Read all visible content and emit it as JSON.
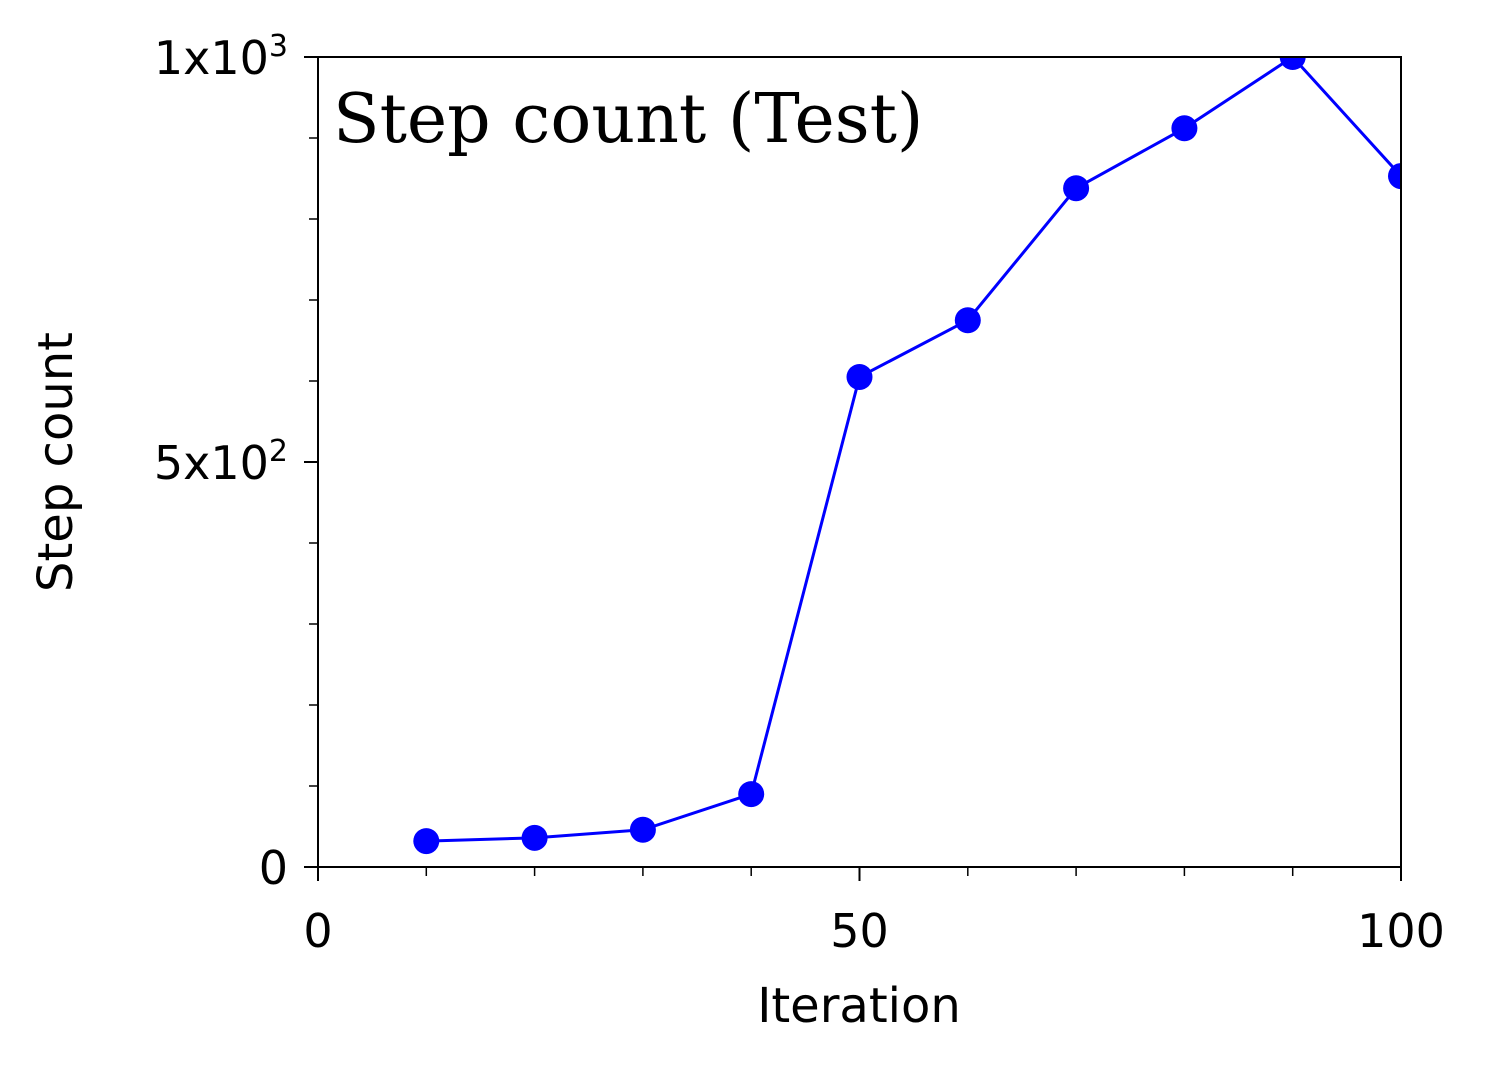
{
  "chart_data": {
    "type": "line",
    "title": "Step count (Test)",
    "xlabel": "Iteration",
    "ylabel": "Step count",
    "xlim": [
      0,
      100
    ],
    "ylim": [
      0,
      1000
    ],
    "x_ticks": [
      {
        "value": 0,
        "label": "0"
      },
      {
        "value": 50,
        "label": "50"
      },
      {
        "value": 100,
        "label": "100"
      }
    ],
    "x_minor_ticks": [
      10,
      20,
      30,
      40,
      60,
      70,
      80,
      90
    ],
    "y_ticks": [
      {
        "value": 0,
        "base": "0",
        "exp": ""
      },
      {
        "value": 500,
        "base": "5x10",
        "exp": "2"
      },
      {
        "value": 1000,
        "base": "1x10",
        "exp": "3"
      }
    ],
    "y_minor_ticks": [
      100,
      200,
      300,
      400,
      600,
      700,
      800,
      900
    ],
    "grid": false,
    "series": [
      {
        "color": "#0000ff",
        "marker": "circle",
        "x": [
          10,
          20,
          30,
          40,
          50,
          60,
          70,
          80,
          90,
          100
        ],
        "y": [
          32,
          36,
          46,
          90,
          605,
          675,
          838,
          912,
          1000,
          853
        ]
      }
    ]
  }
}
